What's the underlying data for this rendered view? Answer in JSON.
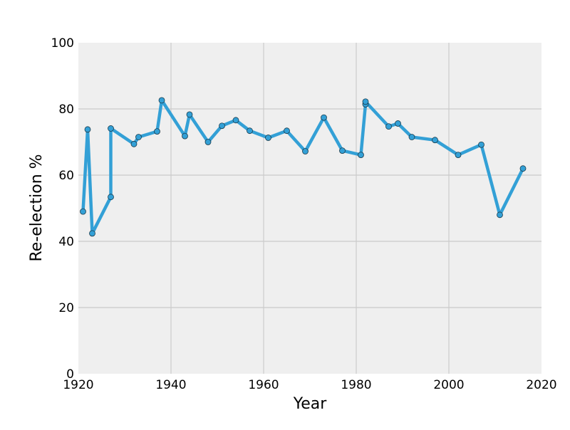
{
  "chart_data": {
    "type": "line",
    "title": "",
    "xlabel": "Year",
    "ylabel": "Re-election %",
    "xlim": [
      1920,
      2020
    ],
    "ylim": [
      0,
      100
    ],
    "x_ticks": [
      1920,
      1940,
      1960,
      1980,
      2000,
      2020
    ],
    "y_ticks": [
      0,
      20,
      40,
      60,
      80,
      100
    ],
    "grid": true,
    "legend": "none",
    "colors": {
      "background": "#efefef",
      "grid": "#cbcbcb",
      "line": "#33a0d6",
      "marker_edge": "#1a3a4a"
    },
    "series": [
      {
        "x": [
          1921,
          1922,
          1923,
          1927,
          1927,
          1932,
          1933,
          1937,
          1938,
          1943,
          1944,
          1948,
          1951,
          1954,
          1957,
          1961,
          1965,
          1969,
          1973,
          1977,
          1981,
          1982,
          1982,
          1987,
          1989,
          1992,
          1997,
          2002,
          2007,
          2011,
          2016
        ],
        "y": [
          49.0,
          73.8,
          42.4,
          53.4,
          74.1,
          69.4,
          71.5,
          73.2,
          82.6,
          71.8,
          78.3,
          70.0,
          74.9,
          76.6,
          73.4,
          71.3,
          73.4,
          67.2,
          77.4,
          67.4,
          66.1,
          81.4,
          82.2,
          74.7,
          75.6,
          71.5,
          70.6,
          66.1,
          69.2,
          48.0,
          62.0
        ]
      }
    ]
  }
}
